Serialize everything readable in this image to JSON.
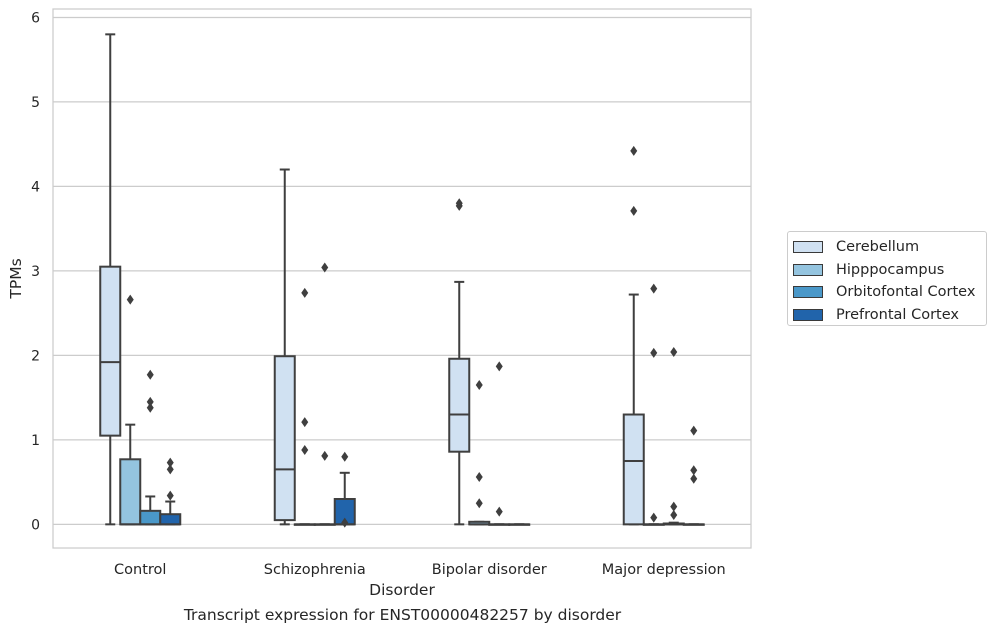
{
  "caption": "Transcript expression for ENST00000482257 by disorder",
  "chart_data": {
    "type": "box",
    "xlabel": "Disorder",
    "ylabel": "TPMs",
    "ylim": [
      -0.28,
      6.1
    ],
    "yticks": [
      "0",
      "1",
      "2",
      "3",
      "4",
      "5",
      "6"
    ],
    "grid": "horizontal",
    "legend_position": "right",
    "categories": [
      "Control",
      "Schizophrenia",
      "Bipolar disorder",
      "Major depression"
    ],
    "series": [
      {
        "name": "Cerebellum",
        "color": "#d0e1f2",
        "boxes": [
          {
            "min": 0,
            "q1": 1.05,
            "median": 1.92,
            "q3": 3.05,
            "max": 5.8,
            "outliers": []
          },
          {
            "min": 0,
            "q1": 0.05,
            "median": 0.65,
            "q3": 1.99,
            "max": 4.2,
            "outliers": []
          },
          {
            "min": 0,
            "q1": 0.86,
            "median": 1.3,
            "q3": 1.96,
            "max": 2.87,
            "outliers": [
              3.77,
              3.8
            ]
          },
          {
            "min": 0,
            "q1": 0,
            "median": 0.75,
            "q3": 1.3,
            "max": 2.72,
            "outliers": [
              3.71,
              4.42
            ]
          }
        ]
      },
      {
        "name": "Hipppocampus",
        "color": "#94c4df",
        "boxes": [
          {
            "min": 0,
            "q1": 0,
            "median": 0,
            "q3": 0.77,
            "max": 1.18,
            "outliers": [
              2.66
            ]
          },
          {
            "min": 0,
            "q1": 0,
            "median": 0,
            "q3": 0,
            "max": 0,
            "outliers": [
              0.88,
              1.21,
              2.74
            ]
          },
          {
            "min": 0,
            "q1": 0,
            "median": 0,
            "q3": 0.03,
            "max": 0.03,
            "outliers": [
              0.25,
              0.56,
              1.65
            ]
          },
          {
            "min": 0,
            "q1": 0,
            "median": 0,
            "q3": 0,
            "max": 0,
            "outliers": [
              0.08,
              2.03,
              2.79
            ]
          }
        ]
      },
      {
        "name": "Orbitofontal Cortex",
        "color": "#4a98c9",
        "boxes": [
          {
            "min": 0,
            "q1": 0,
            "median": 0,
            "q3": 0.16,
            "max": 0.33,
            "outliers": [
              1.38,
              1.45,
              1.77
            ]
          },
          {
            "min": 0,
            "q1": 0,
            "median": 0,
            "q3": 0,
            "max": 0,
            "outliers": [
              0.81,
              3.04
            ]
          },
          {
            "min": 0,
            "q1": 0,
            "median": 0,
            "q3": 0,
            "max": 0,
            "outliers": [
              0.15,
              1.87
            ]
          },
          {
            "min": 0,
            "q1": 0,
            "median": 0,
            "q3": 0.01,
            "max": 0.02,
            "outliers": [
              0.11,
              0.21,
              2.04
            ]
          }
        ]
      },
      {
        "name": "Prefrontal Cortex",
        "color": "#2164ab",
        "boxes": [
          {
            "min": 0,
            "q1": 0,
            "median": 0,
            "q3": 0.12,
            "max": 0.27,
            "outliers": [
              0.34,
              0.65,
              0.73
            ]
          },
          {
            "min": 0,
            "q1": 0,
            "median": 0,
            "q3": 0.3,
            "max": 0.61,
            "outliers": [
              0.02,
              0.8
            ]
          },
          {
            "min": 0,
            "q1": 0,
            "median": 0,
            "q3": 0,
            "max": 0,
            "outliers": []
          },
          {
            "min": 0,
            "q1": 0,
            "median": 0,
            "q3": 0,
            "max": 0,
            "outliers": [
              0.54,
              0.64,
              1.11
            ]
          }
        ]
      }
    ]
  }
}
